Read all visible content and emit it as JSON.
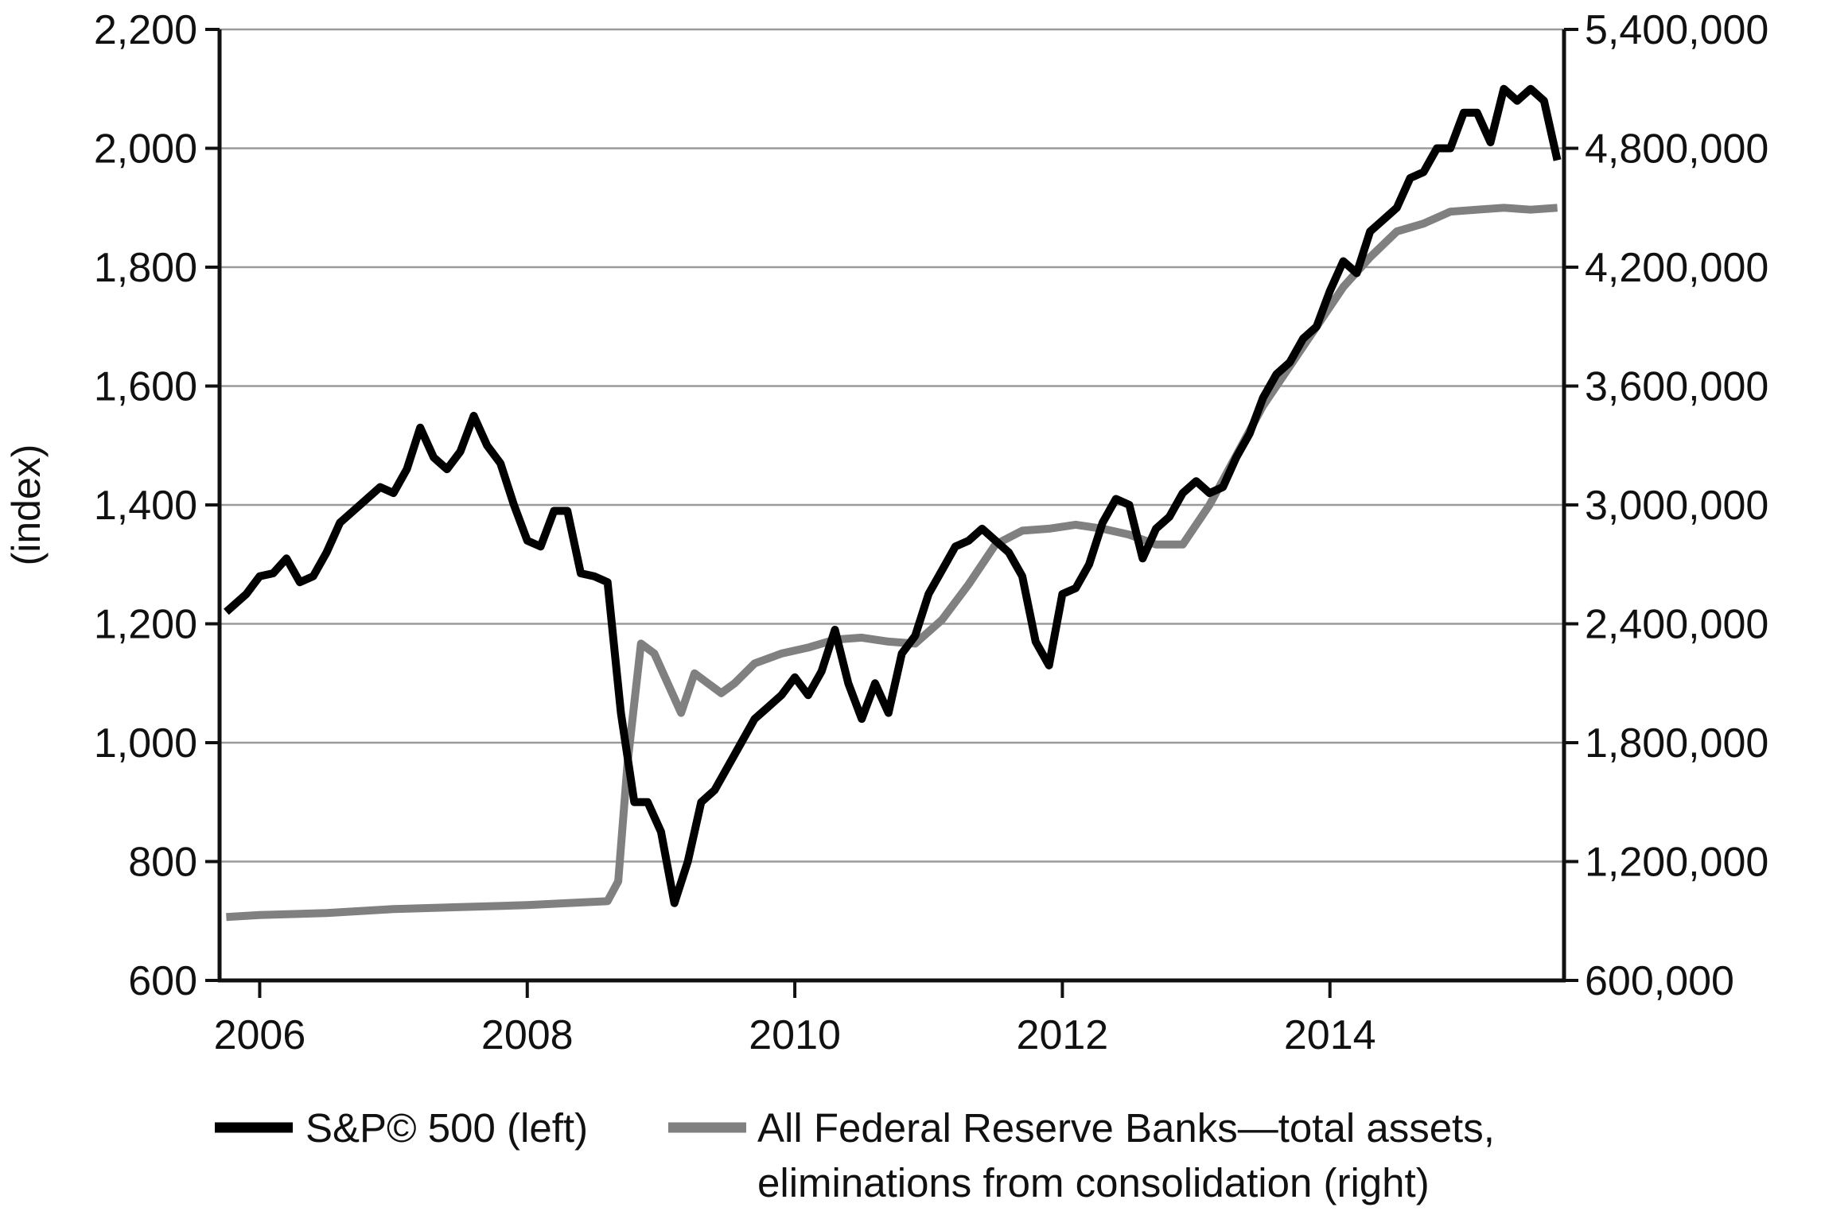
{
  "chart_data": {
    "type": "line",
    "title": "",
    "xlabel": "",
    "ylabel_left": "(index)",
    "ylabel_right": "",
    "x_ticks": [
      "2006",
      "2008",
      "2010",
      "2012",
      "2014"
    ],
    "y_left_ticks": [
      "600",
      "800",
      "1,000",
      "1,200",
      "1,400",
      "1,600",
      "1,800",
      "2,000",
      "2,200"
    ],
    "y_right_ticks": [
      "600,000",
      "1,200,000",
      "1,800,000",
      "2,400,000",
      "3,000,000",
      "3,600,000",
      "4,200,000",
      "4,800,000",
      "5,400,000"
    ],
    "xlim": [
      2005.7,
      2015.75
    ],
    "ylim_left": [
      600,
      2200
    ],
    "ylim_right": [
      600000,
      5400000
    ],
    "grid": "horizontal",
    "legend_position": "bottom",
    "series": [
      {
        "name": "S&P© 500 (left)",
        "axis": "left",
        "color": "#000000",
        "x": [
          2005.75,
          2005.9,
          2006.0,
          2006.1,
          2006.2,
          2006.3,
          2006.4,
          2006.5,
          2006.6,
          2006.75,
          2006.9,
          2007.0,
          2007.1,
          2007.2,
          2007.3,
          2007.4,
          2007.5,
          2007.6,
          2007.7,
          2007.8,
          2007.9,
          2008.0,
          2008.1,
          2008.2,
          2008.3,
          2008.4,
          2008.5,
          2008.6,
          2008.7,
          2008.8,
          2008.9,
          2009.0,
          2009.1,
          2009.2,
          2009.3,
          2009.4,
          2009.5,
          2009.6,
          2009.7,
          2009.8,
          2009.9,
          2010.0,
          2010.1,
          2010.2,
          2010.3,
          2010.4,
          2010.5,
          2010.6,
          2010.7,
          2010.8,
          2010.9,
          2011.0,
          2011.1,
          2011.2,
          2011.3,
          2011.4,
          2011.5,
          2011.6,
          2011.7,
          2011.8,
          2011.9,
          2012.0,
          2012.1,
          2012.2,
          2012.3,
          2012.4,
          2012.5,
          2012.6,
          2012.7,
          2012.8,
          2012.9,
          2013.0,
          2013.1,
          2013.2,
          2013.3,
          2013.4,
          2013.5,
          2013.6,
          2013.7,
          2013.8,
          2013.9,
          2014.0,
          2014.1,
          2014.2,
          2014.3,
          2014.4,
          2014.5,
          2014.6,
          2014.7,
          2014.8,
          2014.9,
          2015.0,
          2015.1,
          2015.2,
          2015.3,
          2015.4,
          2015.5,
          2015.6,
          2015.7
        ],
        "values": [
          1220,
          1250,
          1280,
          1285,
          1310,
          1270,
          1280,
          1320,
          1370,
          1400,
          1430,
          1420,
          1460,
          1530,
          1480,
          1460,
          1490,
          1550,
          1500,
          1470,
          1400,
          1340,
          1330,
          1390,
          1390,
          1285,
          1280,
          1270,
          1050,
          900,
          900,
          850,
          730,
          800,
          900,
          920,
          960,
          1000,
          1040,
          1060,
          1080,
          1110,
          1080,
          1120,
          1190,
          1100,
          1040,
          1100,
          1050,
          1150,
          1180,
          1250,
          1290,
          1330,
          1340,
          1360,
          1340,
          1320,
          1280,
          1170,
          1130,
          1250,
          1260,
          1300,
          1370,
          1410,
          1400,
          1310,
          1360,
          1380,
          1420,
          1440,
          1420,
          1430,
          1480,
          1520,
          1580,
          1620,
          1640,
          1680,
          1700,
          1760,
          1810,
          1790,
          1860,
          1880,
          1900,
          1950,
          1960,
          2000,
          2000,
          2060,
          2060,
          2010,
          2100,
          2080,
          2100,
          2080,
          1980
        ]
      },
      {
        "name": "All Federal Reserve Banks—total assets, eliminations from consolidation (right)",
        "axis": "right",
        "color": "#808080",
        "x": [
          2005.75,
          2006.0,
          2006.5,
          2007.0,
          2007.5,
          2008.0,
          2008.3,
          2008.6,
          2008.68,
          2008.75,
          2008.85,
          2008.95,
          2009.05,
          2009.15,
          2009.25,
          2009.35,
          2009.45,
          2009.55,
          2009.7,
          2009.9,
          2010.1,
          2010.3,
          2010.5,
          2010.7,
          2010.9,
          2011.1,
          2011.3,
          2011.5,
          2011.7,
          2011.9,
          2012.1,
          2012.3,
          2012.5,
          2012.7,
          2012.9,
          2013.1,
          2013.3,
          2013.5,
          2013.7,
          2013.9,
          2014.1,
          2014.3,
          2014.5,
          2014.7,
          2014.9,
          2015.1,
          2015.3,
          2015.5,
          2015.7
        ],
        "values": [
          920000,
          930000,
          940000,
          960000,
          970000,
          980000,
          990000,
          1000000,
          1100000,
          1700000,
          2300000,
          2250000,
          2100000,
          1950000,
          2150000,
          2100000,
          2050000,
          2100000,
          2200000,
          2250000,
          2280000,
          2320000,
          2330000,
          2310000,
          2300000,
          2420000,
          2600000,
          2800000,
          2870000,
          2880000,
          2900000,
          2880000,
          2850000,
          2800000,
          2800000,
          3000000,
          3250000,
          3500000,
          3700000,
          3900000,
          4100000,
          4250000,
          4380000,
          4420000,
          4480000,
          4490000,
          4500000,
          4490000,
          4500000
        ]
      }
    ]
  }
}
